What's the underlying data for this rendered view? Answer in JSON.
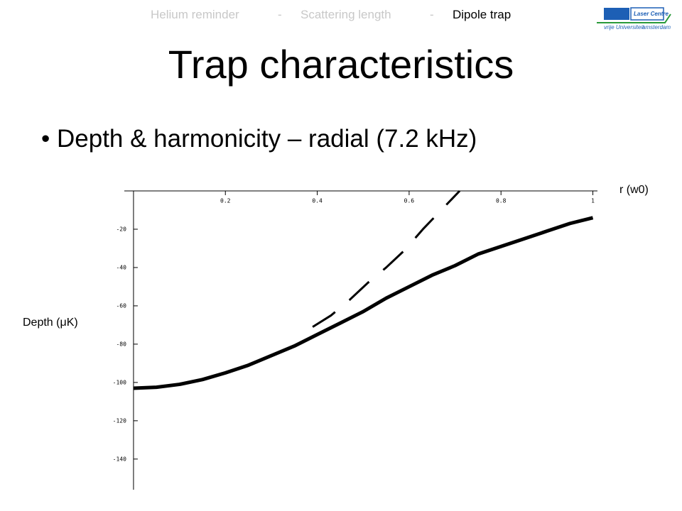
{
  "nav": {
    "items": [
      "Helium reminder",
      "-",
      "Scattering length",
      "-",
      "Dipole trap"
    ]
  },
  "logo": {
    "name": "Laser Centre",
    "university": "vrije Universiteit",
    "city": "amsterdam"
  },
  "title": "Trap characteristics",
  "bullet": "Depth & harmonicity – radial (7.2 kHz)",
  "chart_data": {
    "type": "line",
    "x_label": "r (w0)",
    "y_label": "Depth (μK)",
    "series": [
      {
        "color": "#000000",
        "dash": false,
        "x": [
          0,
          0.05,
          0.1,
          0.15,
          0.2,
          0.25,
          0.3,
          0.35,
          0.4,
          0.45,
          0.5,
          0.55,
          0.6,
          0.65,
          0.7,
          0.75,
          0.8,
          0.85,
          0.9,
          0.95,
          1
        ],
        "values": [
          -103,
          -102.5,
          -101,
          -98.5,
          -95,
          -91,
          -86,
          -81,
          -75,
          -69,
          -63,
          -56,
          -50,
          -44,
          -39,
          -33,
          -29,
          -25,
          -21,
          -17,
          -14
        ]
      },
      {
        "color": "#000000",
        "dash": true,
        "x": [
          0.39,
          0.43,
          0.47,
          0.51,
          0.55,
          0.59,
          0.63,
          0.67,
          0.71
        ],
        "values": [
          -71,
          -65,
          -57,
          -48,
          -40,
          -31,
          -20,
          -10,
          0
        ]
      }
    ],
    "xlim": [
      -0.02,
      1.01
    ],
    "ylim": [
      -156,
      0
    ],
    "xticks": [
      0.2,
      0.4,
      0.6,
      0.8,
      1
    ],
    "yticks": [
      -20,
      -40,
      -60,
      -80,
      -100,
      -120,
      -140
    ]
  }
}
